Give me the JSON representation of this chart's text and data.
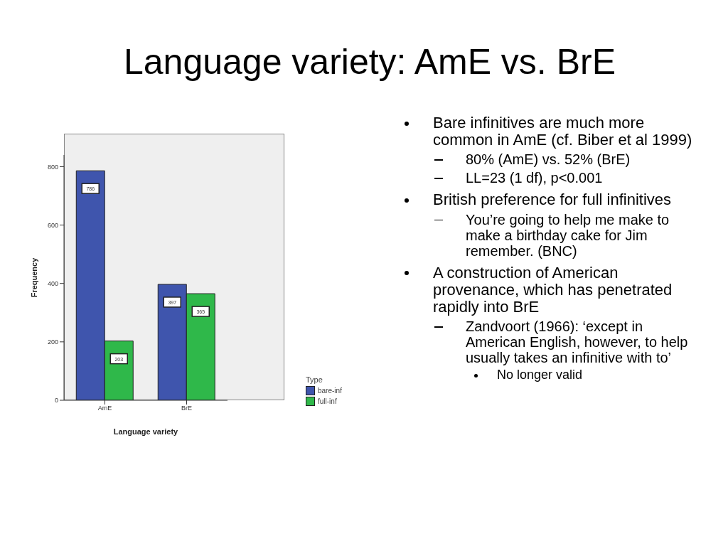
{
  "chart_data": {
    "type": "bar",
    "title": "Language variety: AmE vs. BrE",
    "categories": [
      "AmE",
      "BrE"
    ],
    "series": [
      {
        "name": "bare-inf",
        "color": "#3f55ad",
        "values": [
          786,
          397
        ]
      },
      {
        "name": "full-inf",
        "color": "#2fb84a",
        "values": [
          203,
          365
        ]
      }
    ],
    "xlabel": "Language variety",
    "ylabel": "Frequency",
    "legend_title": "Type",
    "ylim": [
      0,
      840
    ],
    "yticks": [
      0,
      200,
      400,
      600,
      800
    ],
    "grid": false,
    "legend": "bottom right",
    "data_labels": true,
    "annotations": [
      "Bare infinitives are much more common in AmE (cf. Biber et al 1999)",
      "80% (AmE) vs. 52% (BrE)",
      "LL=23 (1 df), p<0.001",
      "British preference for full infinitives",
      "You’re going to help me make to make a birthday cake for Jim remember. (BNC)",
      "A construction of American provenance, which has penetrated rapidly into BrE",
      "Zandvoort (1966): ‘except in American English, however, to help usually takes an infinitive with to’",
      "No longer valid"
    ]
  }
}
